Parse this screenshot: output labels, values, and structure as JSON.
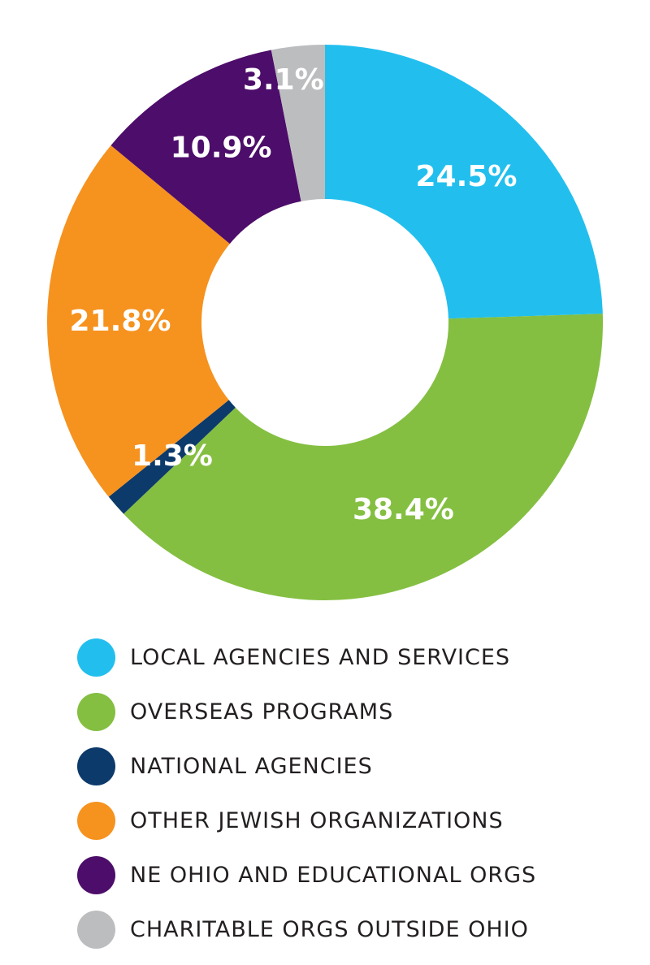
{
  "chart_data": {
    "type": "pie",
    "donut": true,
    "series": [
      {
        "name": "LOCAL AGENCIES AND SERVICES",
        "value": 24.5,
        "label": "24.5%",
        "color": "#22bfee"
      },
      {
        "name": "OVERSEAS PROGRAMS",
        "value": 38.4,
        "label": "38.4%",
        "color": "#84bf41"
      },
      {
        "name": "NATIONAL AGENCIES",
        "value": 1.3,
        "label": "1.3%",
        "color": "#0c3a6b"
      },
      {
        "name": "OTHER JEWISH ORGANIZATIONS",
        "value": 21.8,
        "label": "21.8%",
        "color": "#f6921e"
      },
      {
        "name": "NE OHIO AND EDUCATIONAL ORGS",
        "value": 10.9,
        "label": "10.9%",
        "color": "#4d0d6a"
      },
      {
        "name": "CHARITABLE ORGS OUTSIDE OHIO",
        "value": 3.1,
        "label": "3.1%",
        "color": "#bcbdbf"
      }
    ],
    "start": "top",
    "direction": "clockwise",
    "legend": "bottom",
    "title": ""
  }
}
